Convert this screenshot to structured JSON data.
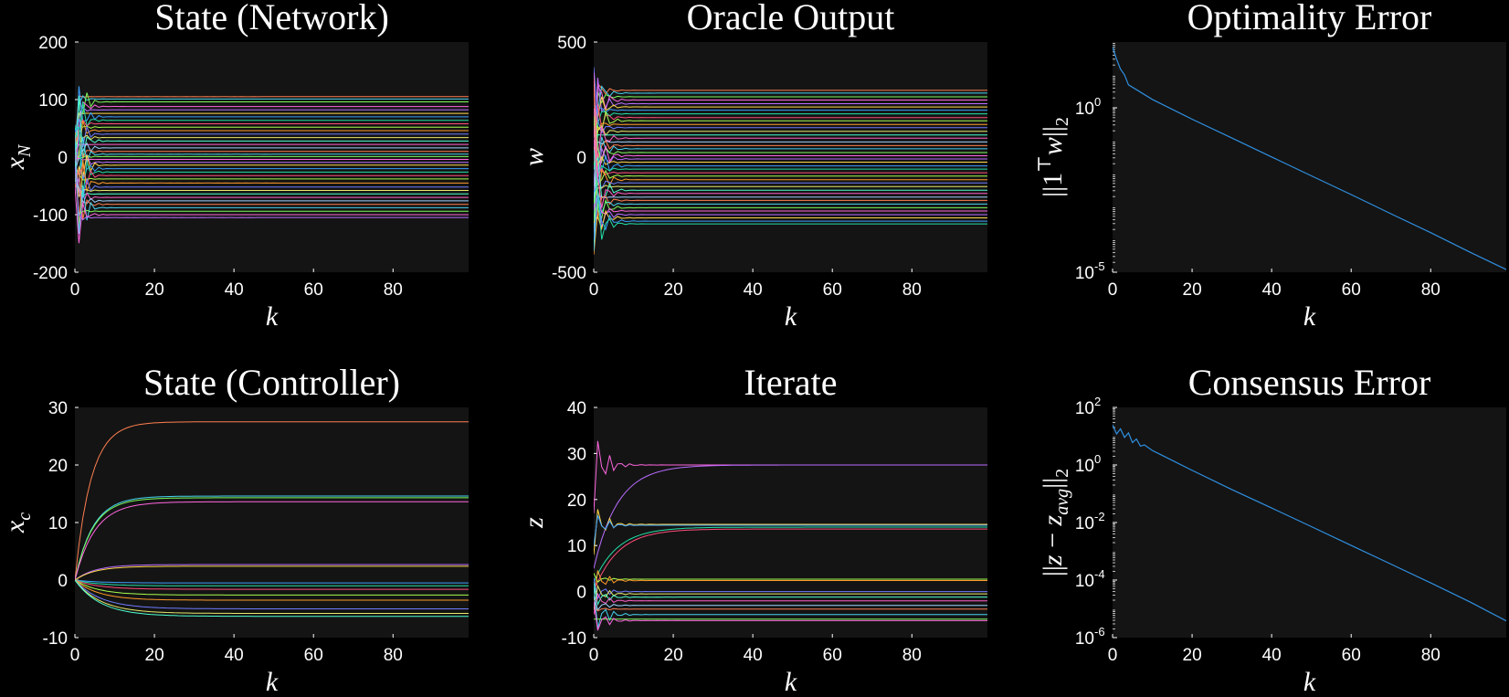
{
  "colors": {
    "figure_bg": "#000000",
    "axes_bg": "#141414",
    "text": "#ffffff",
    "error_line": "#2f8fe0",
    "palette": [
      "#ff7f50",
      "#46d3f0",
      "#7cfc5a",
      "#ff66e0",
      "#b96cff",
      "#ffd84a",
      "#3aa0ff",
      "#22e0a8",
      "#ff4d7a",
      "#a7ff4d",
      "#ff9a2a",
      "#6f7bff",
      "#e8e86a",
      "#4dffd0",
      "#ff5ec8",
      "#9fd1ff"
    ]
  },
  "panels": [
    {
      "id": "network",
      "title": "State (Network)",
      "xlabel": "k",
      "ylabel": "x_N",
      "xticks": [
        0,
        20,
        40,
        60,
        80
      ],
      "yticks": [
        "200",
        "100",
        "0",
        "-100",
        "-200"
      ],
      "ylim": [
        -200,
        200
      ],
      "xlim": [
        0,
        99
      ],
      "scale": "linear"
    },
    {
      "id": "oracle",
      "title": "Oracle Output",
      "xlabel": "k",
      "ylabel": "w",
      "xticks": [
        0,
        20,
        40,
        60,
        80
      ],
      "yticks": [
        "500",
        "0",
        "-500"
      ],
      "ylim": [
        -500,
        500
      ],
      "xlim": [
        0,
        99
      ],
      "scale": "linear"
    },
    {
      "id": "optimality",
      "title": "Optimality Error",
      "xlabel": "k",
      "ylabel": "||1ᵀw||₂",
      "xticks": [
        0,
        20,
        40,
        60,
        80
      ],
      "yticks": [
        {
          "base": "10",
          "exp": "0"
        },
        {
          "base": "10",
          "exp": "-5"
        }
      ],
      "ylim": [
        -5,
        2
      ],
      "xlim": [
        0,
        99
      ],
      "scale": "log"
    },
    {
      "id": "controller",
      "title": "State (Controller)",
      "xlabel": "k",
      "ylabel": "x_c",
      "xticks": [
        0,
        20,
        40,
        60,
        80
      ],
      "yticks": [
        "30",
        "20",
        "10",
        "0",
        "-10"
      ],
      "ylim": [
        -10,
        30
      ],
      "xlim": [
        0,
        99
      ],
      "scale": "linear"
    },
    {
      "id": "iterate",
      "title": "Iterate",
      "xlabel": "k",
      "ylabel": "z",
      "xticks": [
        0,
        20,
        40,
        60,
        80
      ],
      "yticks": [
        "40",
        "30",
        "20",
        "10",
        "0",
        "-10"
      ],
      "ylim": [
        -10,
        40
      ],
      "xlim": [
        0,
        99
      ],
      "scale": "linear"
    },
    {
      "id": "consensus",
      "title": "Consensus Error",
      "xlabel": "k",
      "ylabel": "||z − z_avg||₂",
      "xticks": [
        0,
        20,
        40,
        60,
        80
      ],
      "yticks": [
        {
          "base": "10",
          "exp": "2"
        },
        {
          "base": "10",
          "exp": "0"
        },
        {
          "base": "10",
          "exp": "-2"
        },
        {
          "base": "10",
          "exp": "-4"
        },
        {
          "base": "10",
          "exp": "-6"
        }
      ],
      "ylim": [
        -6,
        2
      ],
      "xlim": [
        0,
        99
      ],
      "scale": "log"
    }
  ],
  "chart_data": [
    {
      "type": "line",
      "title": "State (Network)",
      "xlabel": "k",
      "ylabel": "x_N",
      "xlim": [
        0,
        99
      ],
      "ylim": [
        -200,
        200
      ],
      "grid": false,
      "series_desc": "many trajectories that oscillate strongly (up to about ±190) for k < 6 and then settle to constant values between about -105 and 105",
      "final_values": [
        105,
        101,
        96,
        88,
        82,
        76,
        70,
        64,
        58,
        52,
        46,
        40,
        34,
        28,
        22,
        16,
        10,
        5,
        1,
        -4,
        -9,
        -14,
        -20,
        -26,
        -32,
        -38,
        -45,
        -52,
        -58,
        -64,
        -70,
        -76,
        -82,
        -88,
        -94,
        -100,
        -105
      ],
      "initial_spike": 190
    },
    {
      "type": "line",
      "title": "Oracle Output",
      "xlabel": "k",
      "ylabel": "w",
      "xlim": [
        0,
        99
      ],
      "ylim": [
        -500,
        500
      ],
      "grid": false,
      "series_desc": "many trajectories with a short transient (up to about ±430) then constant values between about -290 and 290",
      "final_values": [
        290,
        278,
        262,
        248,
        232,
        218,
        204,
        188,
        172,
        158,
        142,
        128,
        112,
        96,
        82,
        66,
        50,
        36,
        20,
        6,
        -8,
        -22,
        -38,
        -52,
        -68,
        -82,
        -98,
        -112,
        -128,
        -144,
        -158,
        -174,
        -188,
        -204,
        -220,
        -234,
        -250,
        -264,
        -278,
        -290
      ],
      "initial_spike": 430
    },
    {
      "type": "line",
      "title": "Optimality Error",
      "xlabel": "k",
      "ylabel": "||1ᵀw||₂",
      "xlim": [
        0,
        99
      ],
      "ylim_log10": [
        -5,
        2
      ],
      "yscale": "log",
      "grid": false,
      "x": [
        0,
        1,
        2,
        3,
        4,
        10,
        20,
        30,
        40,
        50,
        60,
        70,
        80,
        90,
        99
      ],
      "y": [
        70,
        30,
        15,
        10,
        5,
        1.8,
        0.45,
        0.12,
        0.032,
        0.0085,
        0.0023,
        0.0006,
        0.00016,
        4e-05,
        1.2e-05
      ]
    },
    {
      "type": "line",
      "title": "State (Controller)",
      "xlabel": "k",
      "ylabel": "x_c",
      "xlim": [
        0,
        99
      ],
      "ylim": [
        -10,
        30
      ],
      "grid": false,
      "series": [
        {
          "final": 27.5,
          "tau": 4.0
        },
        {
          "final": 14.6,
          "tau": 4.5
        },
        {
          "final": 14.3,
          "tau": 4.5
        },
        {
          "final": 13.6,
          "tau": 5.0
        },
        {
          "final": 2.7,
          "tau": 5.0
        },
        {
          "final": 2.4,
          "tau": 5.0
        },
        {
          "final": -0.5,
          "tau": 6.0
        },
        {
          "final": -1.0,
          "tau": 6.0
        },
        {
          "final": -1.6,
          "tau": 6.0
        },
        {
          "final": -2.6,
          "tau": 6.0
        },
        {
          "final": -3.5,
          "tau": 6.0
        },
        {
          "final": -5.0,
          "tau": 6.5
        },
        {
          "final": -5.8,
          "tau": 6.5
        },
        {
          "final": -6.3,
          "tau": 6.5
        }
      ]
    },
    {
      "type": "line",
      "title": "Iterate",
      "xlabel": "k",
      "ylabel": "z",
      "xlim": [
        0,
        99
      ],
      "ylim": [
        -10,
        40
      ],
      "grid": false,
      "series": [
        {
          "final": 27.5,
          "start": 17,
          "mode": "damped"
        },
        {
          "final": 27.5,
          "start": 5,
          "mode": "rise"
        },
        {
          "final": 14.6,
          "start": 8,
          "mode": "damped"
        },
        {
          "final": 14.4,
          "start": 10,
          "mode": "damped"
        },
        {
          "final": 14.0,
          "start": 2,
          "mode": "rise"
        },
        {
          "final": 13.6,
          "start": 0,
          "mode": "rise"
        },
        {
          "final": 2.7,
          "start": 4,
          "mode": "damped"
        },
        {
          "final": 2.4,
          "start": -2,
          "mode": "damped"
        },
        {
          "final": 0.0,
          "start": 3,
          "mode": "damped"
        },
        {
          "final": -0.5,
          "start": -4,
          "mode": "damped"
        },
        {
          "final": -1.2,
          "start": 2,
          "mode": "damped"
        },
        {
          "final": -2.0,
          "start": -5,
          "mode": "damped"
        },
        {
          "final": -3.0,
          "start": -1,
          "mode": "damped"
        },
        {
          "final": -3.8,
          "start": -3,
          "mode": "damped"
        },
        {
          "final": -5.0,
          "start": 1,
          "mode": "damped"
        },
        {
          "final": -6.0,
          "start": -6,
          "mode": "damped"
        },
        {
          "final": -6.3,
          "start": -2,
          "mode": "damped"
        }
      ]
    },
    {
      "type": "line",
      "title": "Consensus Error",
      "xlabel": "k",
      "ylabel": "||z − z_avg||₂",
      "xlim": [
        0,
        99
      ],
      "ylim_log10": [
        -6,
        2
      ],
      "yscale": "log",
      "grid": false,
      "x": [
        0,
        1,
        2,
        3,
        4,
        5,
        6,
        7,
        8,
        10,
        20,
        30,
        40,
        50,
        60,
        70,
        80,
        90,
        99
      ],
      "y": [
        25,
        12,
        18,
        9,
        13,
        6,
        8,
        4.5,
        5,
        3.2,
        0.65,
        0.14,
        0.032,
        0.0072,
        0.0016,
        0.00036,
        8e-05,
        1.7e-05,
        3.8e-06
      ]
    }
  ]
}
